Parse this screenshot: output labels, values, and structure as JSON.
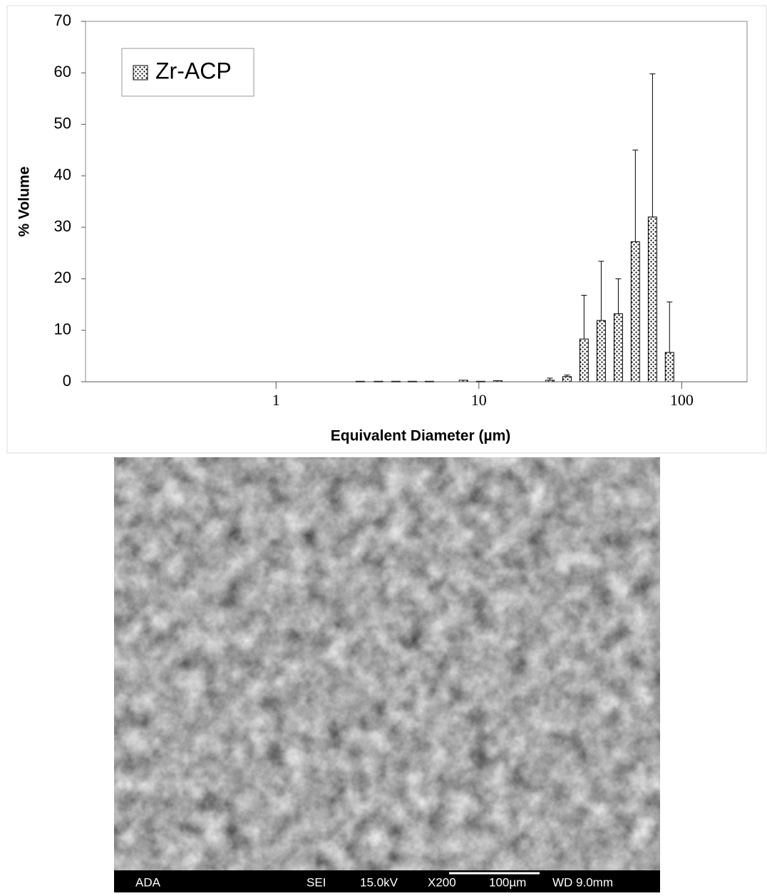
{
  "chart_data": {
    "type": "bar",
    "y_label": "% Volume",
    "x_label": "Equivalent Diameter (µm)",
    "xscale": "log",
    "xlim": [
      0.115,
      210
    ],
    "xticks": [
      1,
      10,
      100
    ],
    "ylim": [
      0,
      70
    ],
    "yticks": [
      0,
      10,
      20,
      30,
      40,
      50,
      60,
      70
    ],
    "legend": "upper left",
    "x": [
      2.6,
      3.2,
      3.9,
      4.7,
      5.7,
      8.4,
      10.2,
      12.4,
      22.4,
      27.2,
      33.0,
      40.1,
      48.7,
      59.1,
      71.8,
      87.1
    ],
    "series": [
      {
        "name": "Zr-ACP",
        "color": "#000000",
        "values": [
          0.1,
          0.1,
          0.1,
          0.1,
          0.1,
          0.3,
          0.1,
          0.2,
          0.3,
          1.0,
          8.3,
          11.9,
          13.2,
          27.2,
          32.0,
          5.7
        ],
        "errors": [
          0,
          0,
          0,
          0,
          0,
          0,
          0,
          0,
          0.4,
          0.3,
          8.5,
          11.5,
          6.8,
          17.8,
          27.8,
          9.8
        ]
      }
    ]
  },
  "sem": {
    "labels": [
      "ADA",
      "SEI",
      "15.0kV",
      "X200",
      "100µm",
      "WD 9.0mm"
    ]
  }
}
